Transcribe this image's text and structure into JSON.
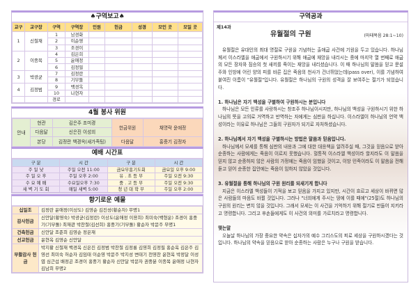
{
  "district_report": {
    "title": "구역보고",
    "headers": [
      "교구",
      "교구장",
      "구역",
      "구역장",
      "인원",
      "헌금",
      "성경",
      "모인 곳",
      "모일 곳"
    ],
    "parishes": [
      {
        "no": "1",
        "leader": "신철재",
        "districts": [
          [
            "1",
            "남경화"
          ],
          [
            "2",
            "이순영"
          ],
          [
            "3",
            "조경이"
          ]
        ]
      },
      {
        "no": "2",
        "leader": "이종목",
        "districts": [
          [
            "4",
            "김은희"
          ],
          [
            "5",
            "윤애정"
          ],
          [
            "6",
            "김정필"
          ]
        ]
      },
      {
        "no": "3",
        "leader": "박광균",
        "districts": [
          [
            "7",
            "김정란"
          ],
          [
            "8",
            "기부돌"
          ]
        ]
      },
      {
        "no": "4",
        "leader": "김정범",
        "districts": [
          [
            "9",
            "백경옥"
          ],
          [
            "10",
            "나현자"
          ]
        ]
      }
    ],
    "extra": "경로"
  },
  "service_volunteers": {
    "title": "4월 봉사 위원",
    "guide": "안내",
    "rows": [
      [
        "현관",
        "김은주 조미경"
      ],
      [
        "다음달",
        "신은진 이성희"
      ],
      [
        "본당",
        "김정란 백경옥(새가족팀)"
      ]
    ],
    "offering_label": "헌금위원",
    "offering_names": "채명락 윤애정",
    "next_label": "다음달",
    "next_names": "홍중기 김정자"
  },
  "worship_schedule": {
    "title": "예배 시간표",
    "headers": [
      "구 분",
      "시 간",
      "구 분",
      "시 간"
    ],
    "rows": [
      [
        "주 일 낮",
        "주일 오전 11:00",
        "금요부흥기도회",
        "금요일 오후 9:00"
      ],
      [
        "주 일 오 후",
        "주일 오후 2:00",
        "유 . 초 등 부",
        "주일 오전 9:30"
      ],
      [
        "수 요 예 배",
        "수요일오후 7:30",
        "중 . 고 등 부",
        "주일 오전 9:30"
      ],
      [
        "새 벽 기 도 회",
        "매일 새벽 5:00",
        "청 년 대 학 부",
        "주일 오후 2:00"
      ]
    ]
  },
  "offerings": {
    "title": "향기로운 예물",
    "rows": [
      {
        "label": "십일조",
        "names": "김정란 윤애정(이상도) 김영순 김진성(황순자) 무명1"
      },
      {
        "label": "감사헌금",
        "names": "신안달(황영숙) 박광균(김정란) 이상도(윤애정 이용희) 최미숙(백형운) 조경이 홍중기(기부돌) 최재관 박찬철(김선희) 홍중기(기부돌) 황순자 박문주 무명1"
      },
      {
        "label": "건축헌금",
        "names": "신안달 조준희 김영순 정은재"
      },
      {
        "label": "선교헌금",
        "names": "윤현옥 김영순 신안달"
      },
      {
        "label": "부활감사 헌금",
        "names": "박지황 신철재 백경옥 신은진 김정범 박찬철 김정룡 김영희 김정필 홍순옥 김은주 김영선 최미숙 허순자 김임태 이순영 박문주 박지성 변태기 천영찬 윤현옥 박정달 이성엽 심근섭 배정곤 조경이 홍중기 황순자 신안달 박문자 권중분 이종목 윤애정 나현자 김남희 무명2"
      }
    ]
  },
  "lesson": {
    "section_title": "구역공과",
    "lesson_no": "제14과",
    "title": "유월절의 구원",
    "reference": "(마태복음 28:1~10)",
    "intro": "유월절은 유대인의 최대 명절로 구원을 기념하는 출애굽 사건에 기원을 두고 있습니다. 하나님께서 이스라엘을 애굽에서 구원하시기 위해 애굽에 재앙을 내리시는 중에 마지막 열 번째로 애굽의 모든 장자와 짐승의 첫 새끼를 죽이는 재앙을 내리셨습니다. 이 때 하나님의 말씀을 믿고 문설주와 인방에 어린 양의 피를 바른 집은 죽음의 천사가 건너뛰었는데(pass over), 이를 기념하여 붙여진 이름이 \"유월절\"입니다. 유월절은 하나님의 구원의 성격을 잘 보여주는 절기가 되었습니다.",
    "points": [
      {
        "heading": "1. 하나님은 자기 백성을 구별하여 구원하시는 분입니다",
        "body": "하나님은 모든 인류를 사랑하시는 창조주 하나님이시지만, 하나님의 백성을 구원하시기 위한 하나님의 뜻을 고의로 거역하고 반역하는 자에게는 심판을 하십니다. 이스라엘이 하나님의 언약 백성이라는 이유로 하나님은 그들의 구원자가 되기로 자처하셨습니다."
      },
      {
        "heading": "2. 하나님께서 자기 백성을 구별하시는 방법은 말씀과 믿음입니다.",
        "body": "하나님께서 모세를 통해 심판의 내용과 그에 대한 대응책을 알려주실 때, 그것을 믿음으로 받아 순종하는 사람에게는 죽음이 이르지 못했습니다. 혈통적 이스라엘 백성이라 할지라도 이 말씀을 믿지 않고 순종하지 않은 사람의 가정에는 죽음이 임했을 것이고, 이방 민족이라도 이 말씀을 전해 듣고 믿어 순종한 집안에는 죽음이 임하지 않았을 것입니다."
      },
      {
        "heading": "3. 유월절을 통해 하나님의 구원 원리를 되새기게 합니다",
        "body": "지금은 이스라엘 백성들이 기적을 보고 믿음을 가지고 있지만, 시간이 흐르고 세상이 바뀌면 많은 사람들의 마음도 바뀔 것입니다. 그러나 \"너희에게 주시는 땅에 이를 때에\"(25절)도 하나님의 구원의 원리는 변치 않을 것입니다. 그래서 모세는 이 사건을 기억하기 위해 절기로 만들어 지키라고 명령합니다. 그리고 후손들에게도 이 사건의 의미를 가르치라고 명령합니다."
      },
      {
        "heading": "맺는말",
        "body": "오늘날 하나님의 가장 중요한 약속은 십자가의 예수 그리스도의 피로 세상을 구원하시겠다는 것입니다. 하나님의 약속을 믿음으로 받아 순종하는 사람은 누구나 구원을 받습니다."
      }
    ]
  }
}
